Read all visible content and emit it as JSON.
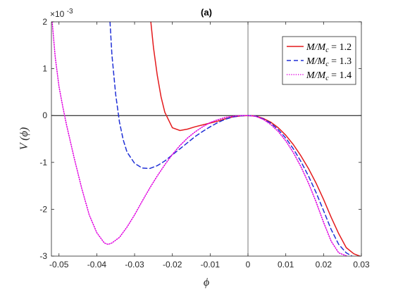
{
  "chart_data": {
    "type": "line",
    "title": "(a)",
    "xlabel": "ϕ",
    "ylabel": "V (ϕ)",
    "y_exponent_label": "×10",
    "y_exponent_power": "-3",
    "xlim": [
      -0.052,
      0.03
    ],
    "ylim": [
      -3,
      2
    ],
    "x_ticks": [
      -0.05,
      -0.04,
      -0.03,
      -0.02,
      -0.01,
      0,
      0.01,
      0.02,
      0.03
    ],
    "x_tick_labels": [
      "-0.05",
      "-0.04",
      "-0.03",
      "-0.02",
      "-0.01",
      "0",
      "0.01",
      "0.02",
      "0.03"
    ],
    "y_ticks": [
      -3,
      -2,
      -1,
      0,
      1,
      2
    ],
    "y_tick_labels": [
      "-3",
      "-2",
      "-1",
      "0",
      "1",
      "2"
    ],
    "grid": false,
    "legend_position": "top-right",
    "reference_lines": {
      "horizontal_y": 0,
      "vertical_x": 0
    },
    "series": [
      {
        "name": "M/M_c = 1.2",
        "legend_label": "M/M",
        "legend_sub": "c",
        "legend_value": " = 1.2",
        "color": "#e41a1c",
        "dash": "solid",
        "x": [
          -0.0257,
          -0.025,
          -0.024,
          -0.023,
          -0.022,
          -0.02,
          -0.018,
          -0.016,
          -0.014,
          -0.012,
          -0.01,
          -0.008,
          -0.006,
          -0.004,
          -0.002,
          0,
          0.002,
          0.004,
          0.006,
          0.008,
          0.01,
          0.012,
          0.014,
          0.016,
          0.018,
          0.02,
          0.022,
          0.024,
          0.026,
          0.028,
          0.0296
        ],
        "y": [
          2.0,
          1.45,
          0.86,
          0.4,
          0.07,
          -0.26,
          -0.32,
          -0.29,
          -0.24,
          -0.2,
          -0.16,
          -0.12,
          -0.07,
          -0.03,
          -0.008,
          0,
          -0.01,
          -0.06,
          -0.14,
          -0.26,
          -0.42,
          -0.62,
          -0.86,
          -1.13,
          -1.44,
          -1.79,
          -2.17,
          -2.52,
          -2.82,
          -2.95,
          -3.0
        ]
      },
      {
        "name": "M/M_c = 1.3",
        "legend_label": "M/M",
        "legend_sub": "c",
        "legend_value": " = 1.3",
        "color": "#1f2fd6",
        "dash": "dashed",
        "x": [
          -0.0365,
          -0.036,
          -0.035,
          -0.034,
          -0.033,
          -0.032,
          -0.03,
          -0.028,
          -0.026,
          -0.024,
          -0.022,
          -0.02,
          -0.018,
          -0.016,
          -0.014,
          -0.012,
          -0.01,
          -0.008,
          -0.006,
          -0.004,
          -0.002,
          0,
          0.002,
          0.004,
          0.006,
          0.008,
          0.01,
          0.012,
          0.014,
          0.016,
          0.018,
          0.02,
          0.022,
          0.024,
          0.026,
          0.0275
        ],
        "y": [
          2.0,
          1.3,
          0.45,
          -0.14,
          -0.52,
          -0.78,
          -1.02,
          -1.12,
          -1.13,
          -1.07,
          -0.97,
          -0.84,
          -0.71,
          -0.58,
          -0.45,
          -0.34,
          -0.24,
          -0.15,
          -0.08,
          -0.03,
          -0.006,
          0,
          -0.012,
          -0.07,
          -0.16,
          -0.3,
          -0.48,
          -0.71,
          -0.98,
          -1.29,
          -1.64,
          -2.03,
          -2.43,
          -2.75,
          -2.93,
          -3.0
        ]
      },
      {
        "name": "M/M_c = 1.4",
        "legend_label": "M/M",
        "legend_sub": "c",
        "legend_value": " = 1.4",
        "color": "#e000e0",
        "dash": "dotted",
        "x": [
          -0.0518,
          -0.051,
          -0.05,
          -0.049,
          -0.048,
          -0.047,
          -0.046,
          -0.044,
          -0.042,
          -0.04,
          -0.038,
          -0.037,
          -0.036,
          -0.034,
          -0.032,
          -0.03,
          -0.028,
          -0.026,
          -0.024,
          -0.022,
          -0.02,
          -0.018,
          -0.016,
          -0.014,
          -0.012,
          -0.01,
          -0.008,
          -0.006,
          -0.004,
          -0.002,
          0,
          0.002,
          0.004,
          0.006,
          0.008,
          0.01,
          0.012,
          0.014,
          0.016,
          0.018,
          0.02,
          0.022,
          0.024,
          0.0262
        ],
        "y": [
          2.0,
          1.25,
          0.62,
          0.19,
          -0.2,
          -0.55,
          -0.9,
          -1.55,
          -2.12,
          -2.5,
          -2.72,
          -2.75,
          -2.72,
          -2.6,
          -2.38,
          -2.12,
          -1.83,
          -1.55,
          -1.29,
          -1.05,
          -0.83,
          -0.64,
          -0.48,
          -0.35,
          -0.24,
          -0.15,
          -0.09,
          -0.04,
          -0.014,
          -0.002,
          0,
          -0.016,
          -0.08,
          -0.19,
          -0.34,
          -0.54,
          -0.79,
          -1.09,
          -1.44,
          -1.84,
          -2.28,
          -2.68,
          -2.93,
          -3.0
        ]
      }
    ]
  }
}
